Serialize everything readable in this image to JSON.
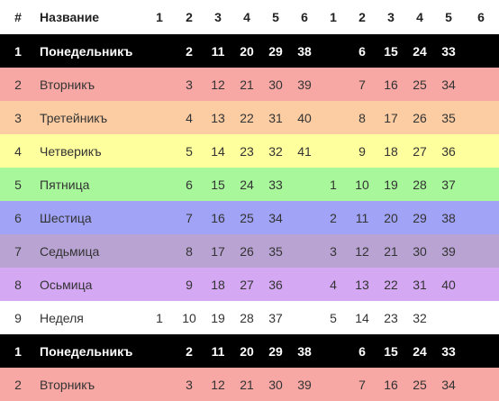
{
  "table": {
    "headers": [
      "#",
      "Название",
      "1",
      "2",
      "3",
      "4",
      "5",
      "6",
      "1",
      "2",
      "3",
      "4",
      "5",
      "6"
    ],
    "row_colors": [
      "#000000",
      "#f7a8a4",
      "#fccda3",
      "#feff9d",
      "#a8f79b",
      "#a0a3f6",
      "#b9a3d3",
      "#d5a8f4",
      "#ffffff",
      "#000000",
      "#f7a8a4"
    ],
    "rows": [
      [
        "1",
        "Понедельникъ",
        "",
        "2",
        "11",
        "20",
        "29",
        "38",
        "",
        "6",
        "15",
        "24",
        "33",
        ""
      ],
      [
        "2",
        "Вторникъ",
        "",
        "3",
        "12",
        "21",
        "30",
        "39",
        "",
        "7",
        "16",
        "25",
        "34",
        ""
      ],
      [
        "3",
        "Третейникъ",
        "",
        "4",
        "13",
        "22",
        "31",
        "40",
        "",
        "8",
        "17",
        "26",
        "35",
        ""
      ],
      [
        "4",
        "Четверикъ",
        "",
        "5",
        "14",
        "23",
        "32",
        "41",
        "",
        "9",
        "18",
        "27",
        "36",
        ""
      ],
      [
        "5",
        "Пятница",
        "",
        "6",
        "15",
        "24",
        "33",
        "",
        "1",
        "10",
        "19",
        "28",
        "37",
        ""
      ],
      [
        "6",
        "Шестица",
        "",
        "7",
        "16",
        "25",
        "34",
        "",
        "2",
        "11",
        "20",
        "29",
        "38",
        ""
      ],
      [
        "7",
        "Седьмица",
        "",
        "8",
        "17",
        "26",
        "35",
        "",
        "3",
        "12",
        "21",
        "30",
        "39",
        ""
      ],
      [
        "8",
        "Осьмица",
        "",
        "9",
        "18",
        "27",
        "36",
        "",
        "4",
        "13",
        "22",
        "31",
        "40",
        ""
      ],
      [
        "9",
        "Неделя",
        "1",
        "10",
        "19",
        "28",
        "37",
        "",
        "5",
        "14",
        "23",
        "32",
        "",
        ""
      ],
      [
        "1",
        "Понедельникъ",
        "",
        "2",
        "11",
        "20",
        "29",
        "38",
        "",
        "6",
        "15",
        "24",
        "33",
        ""
      ],
      [
        "2",
        "Вторникъ",
        "",
        "3",
        "12",
        "21",
        "30",
        "39",
        "",
        "7",
        "16",
        "25",
        "34",
        ""
      ]
    ]
  }
}
